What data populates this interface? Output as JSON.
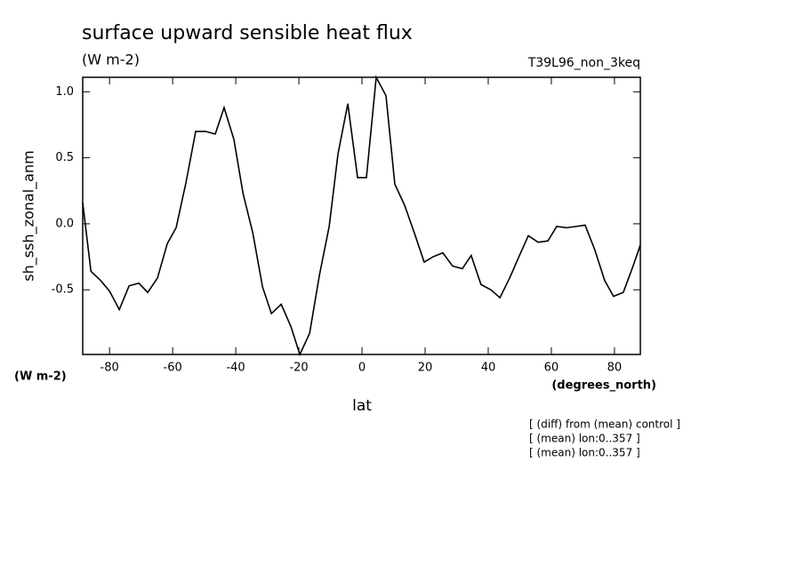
{
  "chart_data": {
    "type": "line",
    "title": "surface upward sensible heat flux",
    "subtitle": "(W m-2)",
    "run_label": "T39L96_non_3keq",
    "y_label": "sh_ssh_zonal_anm",
    "y_units": "(W m-2)",
    "x_units": "(degrees_north)",
    "x_label": "lat",
    "notes": [
      "[ (diff) from (mean) control ]",
      "[ (mean) lon:0..357 ]",
      "[ (mean) lon:0..357 ]"
    ],
    "x": [
      -88.5,
      -85.9,
      -82.8,
      -80,
      -76.9,
      -73.8,
      -70.7,
      -67.9,
      -64.8,
      -61.7,
      -58.9,
      -55.8,
      -52.7,
      -49.6,
      -46.5,
      -43.7,
      -40.6,
      -37.7,
      -34.6,
      -31.5,
      -28.7,
      -25.6,
      -22.5,
      -19.7,
      -16.6,
      -13.5,
      -10.4,
      -7.6,
      -4.5,
      -1.4,
      1.4,
      4.5,
      7.6,
      10.4,
      13.5,
      16.6,
      19.7,
      22.5,
      25.6,
      28.7,
      31.8,
      34.6,
      37.7,
      40.8,
      43.7,
      46.8,
      49.9,
      52.7,
      55.8,
      58.9,
      61.7,
      64.8,
      67.9,
      70.7,
      73.8,
      76.9,
      79.7,
      82.8,
      85.9,
      88.2
    ],
    "series": [
      {
        "name": "sh_ssh_zonal_anm",
        "color": "#000000",
        "values": [
          0.16,
          -0.36,
          -0.43,
          -0.51,
          -0.65,
          -0.47,
          -0.45,
          -0.52,
          -0.41,
          -0.15,
          -0.03,
          0.31,
          0.7,
          0.7,
          0.68,
          0.88,
          0.64,
          0.23,
          -0.07,
          -0.48,
          -0.68,
          -0.61,
          -0.78,
          -0.99,
          -0.83,
          -0.39,
          -0.02,
          0.53,
          0.91,
          0.35,
          0.35,
          1.11,
          0.97,
          0.3,
          0.14,
          -0.07,
          -0.29,
          -0.25,
          -0.22,
          -0.32,
          -0.34,
          -0.24,
          -0.46,
          -0.5,
          -0.56,
          -0.41,
          -0.24,
          -0.09,
          -0.14,
          -0.13,
          -0.02,
          -0.03,
          -0.02,
          -0.01,
          -0.2,
          -0.43,
          -0.55,
          -0.52,
          -0.32,
          -0.16
        ]
      }
    ],
    "xlim": [
      -88.5,
      88.2
    ],
    "ylim": [
      -0.99,
      1.11
    ],
    "xticks": [
      -80,
      -60,
      -40,
      -20,
      0,
      20,
      40,
      60,
      80
    ],
    "yticks": [
      {
        "value": 1,
        "label": "1.0"
      },
      0.5,
      {
        "value": 0,
        "label": "0.0"
      },
      -0.5
    ],
    "grid": false
  }
}
